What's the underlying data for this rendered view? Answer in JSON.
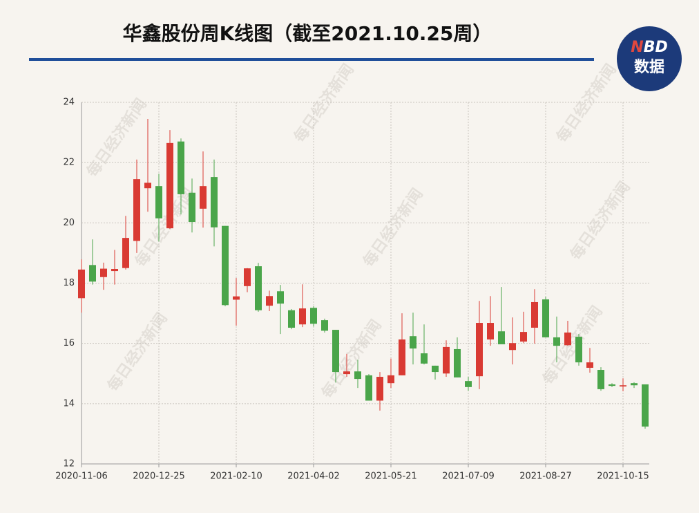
{
  "chart_data": {
    "type": "candlestick",
    "title": "华鑫股份周K线图（截至2021.10.25周）",
    "logo": {
      "brand_parts": [
        "N",
        "BD"
      ],
      "label": "数据"
    },
    "watermark": "每日经济新闻",
    "categories": [
      "2020-11-06",
      null,
      null,
      null,
      null,
      null,
      null,
      "2020-12-25",
      null,
      null,
      null,
      null,
      null,
      null,
      "2021-02-10",
      null,
      null,
      null,
      null,
      null,
      null,
      "2021-04-02",
      null,
      null,
      null,
      null,
      null,
      null,
      "2021-05-21",
      null,
      null,
      null,
      null,
      null,
      null,
      "2021-07-09",
      null,
      null,
      null,
      null,
      null,
      null,
      "2021-08-27",
      null,
      null,
      null,
      null,
      null,
      null,
      "2021-10-15",
      null,
      null
    ],
    "series": [
      {
        "open": [
          17.5,
          18.6,
          18.2,
          18.4,
          18.5,
          19.4,
          21.15,
          21.22,
          19.82,
          22.7,
          21.0,
          20.47,
          21.52,
          19.9,
          17.45,
          17.9,
          18.56,
          17.25,
          17.73,
          17.1,
          16.63,
          17.18,
          16.77,
          16.45,
          14.98,
          15.07,
          14.94,
          14.1,
          14.68,
          14.94,
          16.24,
          15.67,
          15.26,
          15.0,
          15.81,
          14.75,
          14.91,
          16.13,
          16.4,
          15.78,
          16.06,
          16.52,
          17.46,
          16.2,
          15.94,
          16.22,
          15.19,
          15.12,
          14.64,
          14.57,
          14.68,
          14.64
        ],
        "high": [
          18.79,
          19.45,
          18.68,
          19.1,
          20.23,
          22.1,
          23.45,
          21.63,
          23.08,
          22.8,
          21.47,
          22.37,
          22.1,
          19.9,
          18.17,
          18.5,
          18.67,
          17.75,
          17.94,
          17.14,
          17.96,
          17.23,
          16.82,
          16.45,
          15.65,
          15.46,
          14.98,
          15.05,
          15.5,
          17.0,
          17.02,
          16.63,
          15.26,
          16.1,
          16.2,
          14.89,
          17.41,
          17.57,
          17.87,
          16.86,
          17.05,
          17.8,
          17.55,
          16.89,
          16.75,
          16.31,
          15.85,
          15.21,
          14.68,
          14.84,
          14.71,
          14.64
        ],
        "low": [
          17.02,
          17.95,
          17.78,
          17.95,
          18.45,
          19.0,
          20.37,
          19.38,
          19.8,
          20.28,
          19.68,
          19.84,
          19.22,
          17.23,
          16.59,
          17.7,
          17.05,
          17.07,
          16.31,
          16.47,
          16.54,
          16.56,
          16.36,
          14.7,
          14.89,
          14.52,
          14.1,
          13.77,
          14.52,
          14.94,
          15.3,
          15.3,
          14.8,
          14.89,
          14.87,
          14.43,
          14.48,
          15.92,
          15.97,
          15.3,
          16.01,
          15.99,
          16.2,
          15.37,
          15.92,
          15.26,
          15.03,
          14.43,
          14.55,
          14.41,
          14.52,
          13.17
        ],
        "close": [
          18.45,
          18.05,
          18.48,
          18.47,
          19.5,
          21.45,
          21.33,
          20.15,
          22.65,
          20.95,
          20.03,
          21.22,
          19.85,
          17.27,
          17.56,
          18.49,
          17.1,
          17.57,
          17.32,
          16.52,
          17.16,
          16.65,
          16.42,
          15.05,
          15.07,
          14.82,
          14.1,
          14.89,
          14.94,
          16.13,
          15.83,
          15.33,
          15.05,
          15.88,
          14.87,
          14.55,
          16.68,
          16.68,
          15.97,
          16.01,
          16.38,
          17.37,
          16.2,
          15.92,
          16.36,
          15.37,
          15.37,
          14.48,
          14.59,
          14.61,
          14.61,
          13.24
        ]
      }
    ],
    "up_color": "#d93a33",
    "down_color": "#4aa54a",
    "ylim": [
      12,
      24
    ],
    "yticks": [
      12,
      14,
      16,
      18,
      20,
      22,
      24
    ],
    "grid": true
  }
}
